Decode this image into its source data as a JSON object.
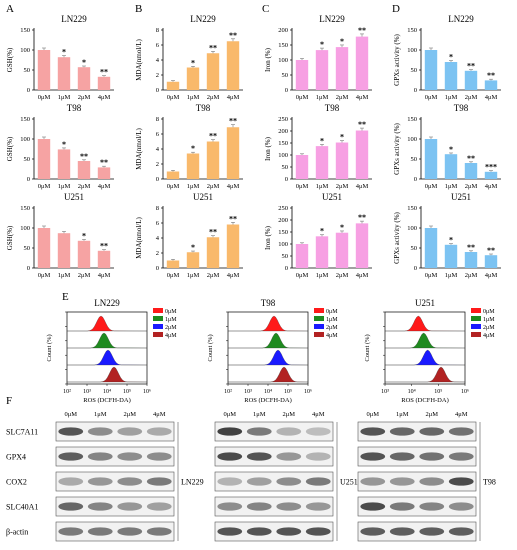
{
  "panel_labels": [
    "A",
    "B",
    "C",
    "D",
    "E",
    "F"
  ],
  "colors": {
    "gsh": "#f6a3a3",
    "mda": "#f9b96b",
    "iron": "#f7a0e3",
    "gpx": "#7cc3f2",
    "flow_0": "#ff1a1a",
    "flow_1": "#1f8a1f",
    "flow_2": "#1a1aff",
    "flow_3": "#b22222"
  },
  "chart_data": [
    {
      "type": "bar",
      "panel": "A",
      "title": "LN229",
      "ylabel": "GSH(%)",
      "categories": [
        "0μM",
        "1μM",
        "2μM",
        "4μM"
      ],
      "values": [
        100,
        82,
        57,
        33
      ],
      "ylim": [
        0,
        150
      ],
      "yticks": [
        "0",
        "50",
        "100",
        "150"
      ],
      "significance": [
        "",
        "*",
        "*",
        "**"
      ]
    },
    {
      "type": "bar",
      "panel": "A",
      "title": "T98",
      "ylabel": "GSH(%)",
      "categories": [
        "0μM",
        "1μM",
        "2μM",
        "4μM"
      ],
      "values": [
        100,
        74,
        45,
        29
      ],
      "ylim": [
        0,
        150
      ],
      "yticks": [
        "0",
        "50",
        "100",
        "150"
      ],
      "significance": [
        "",
        "*",
        "**",
        "**"
      ]
    },
    {
      "type": "bar",
      "panel": "A",
      "title": "U251",
      "ylabel": "GSH(%)",
      "categories": [
        "0μM",
        "1μM",
        "2μM",
        "4μM"
      ],
      "values": [
        100,
        87,
        68,
        43
      ],
      "ylim": [
        0,
        150
      ],
      "yticks": [
        "0",
        "50",
        "100",
        "150"
      ],
      "significance": [
        "",
        "",
        "*",
        "**"
      ]
    },
    {
      "type": "bar",
      "panel": "B",
      "title": "LN229",
      "ylabel": "MDA(nmol/L)",
      "categories": [
        "0μM",
        "1μM",
        "2μM",
        "4μM"
      ],
      "values": [
        1.1,
        3.0,
        4.9,
        6.5
      ],
      "ylim": [
        0,
        8
      ],
      "yticks": [
        "0",
        "2",
        "4",
        "6",
        "8"
      ],
      "significance": [
        "",
        "*",
        "**",
        "**"
      ]
    },
    {
      "type": "bar",
      "panel": "B",
      "title": "T98",
      "ylabel": "MDA(nmol/L)",
      "categories": [
        "0μM",
        "1μM",
        "2μM",
        "4μM"
      ],
      "values": [
        1.0,
        3.4,
        5.0,
        6.9
      ],
      "ylim": [
        0,
        8
      ],
      "yticks": [
        "0",
        "2",
        "4",
        "6",
        "8"
      ],
      "significance": [
        "",
        "*",
        "**",
        "**"
      ]
    },
    {
      "type": "bar",
      "panel": "B",
      "title": "U251",
      "ylabel": "MDA(nmol/L)",
      "categories": [
        "0μM",
        "1μM",
        "2μM",
        "4μM"
      ],
      "values": [
        1.0,
        2.1,
        4.1,
        5.8
      ],
      "ylim": [
        0,
        8
      ],
      "yticks": [
        "0",
        "2",
        "4",
        "6",
        "8"
      ],
      "significance": [
        "",
        "*",
        "**",
        "**"
      ]
    },
    {
      "type": "bar",
      "panel": "C",
      "title": "LN229",
      "ylabel": "Iron (%)",
      "categories": [
        "0μM",
        "1μM",
        "2μM",
        "4μM"
      ],
      "values": [
        100,
        133,
        143,
        178
      ],
      "ylim": [
        0,
        200
      ],
      "yticks": [
        "0",
        "50",
        "100",
        "150",
        "200"
      ],
      "significance": [
        "",
        "*",
        "*",
        "**"
      ]
    },
    {
      "type": "bar",
      "panel": "C",
      "title": "T98",
      "ylabel": "Iron (%)",
      "categories": [
        "0μM",
        "1μM",
        "2μM",
        "4μM"
      ],
      "values": [
        100,
        137,
        152,
        202
      ],
      "ylim": [
        0,
        250
      ],
      "yticks": [
        "0",
        "50",
        "100",
        "150",
        "200",
        "250"
      ],
      "significance": [
        "",
        "*",
        "*",
        "**"
      ]
    },
    {
      "type": "bar",
      "panel": "C",
      "title": "U251",
      "ylabel": "Iron (%)",
      "categories": [
        "0μM",
        "1μM",
        "2μM",
        "4μM"
      ],
      "values": [
        100,
        132,
        147,
        186
      ],
      "ylim": [
        0,
        250
      ],
      "yticks": [
        "0",
        "50",
        "100",
        "150",
        "200",
        "250"
      ],
      "significance": [
        "",
        "*",
        "*",
        "**"
      ]
    },
    {
      "type": "bar",
      "panel": "D",
      "title": "LN229",
      "ylabel": "GPXs activity (%)",
      "categories": [
        "0μM",
        "1μM",
        "2μM",
        "4μM"
      ],
      "values": [
        100,
        70,
        48,
        24
      ],
      "ylim": [
        0,
        150
      ],
      "yticks": [
        "0",
        "50",
        "100",
        "150"
      ],
      "significance": [
        "",
        "*",
        "**",
        "**"
      ]
    },
    {
      "type": "bar",
      "panel": "D",
      "title": "T98",
      "ylabel": "GPXs activity (%)",
      "categories": [
        "0μM",
        "1μM",
        "2μM",
        "4μM"
      ],
      "values": [
        100,
        62,
        40,
        18
      ],
      "ylim": [
        0,
        150
      ],
      "yticks": [
        "0",
        "50",
        "100",
        "150"
      ],
      "significance": [
        "",
        "*",
        "**",
        "***"
      ]
    },
    {
      "type": "bar",
      "panel": "D",
      "title": "U251",
      "ylabel": "GPXs activity (%)",
      "categories": [
        "0μM",
        "1μM",
        "2μM",
        "4μM"
      ],
      "values": [
        100,
        58,
        40,
        32
      ],
      "ylim": [
        0,
        150
      ],
      "yticks": [
        "0",
        "50",
        "100",
        "150"
      ],
      "significance": [
        "",
        "*",
        "**",
        "**"
      ]
    },
    {
      "type": "area",
      "panel": "E",
      "title": "LN229",
      "xlabel": "ROS (DCFH-DA)",
      "ylabel": "Count (%)",
      "xscale": "log",
      "xticks": [
        "10²",
        "10³",
        "10⁴",
        "10⁵",
        "10⁶"
      ],
      "yticks": [
        "0",
        "20",
        "40",
        "60",
        "80",
        "100"
      ],
      "legend": [
        "0μM",
        "1μM",
        "2μM",
        "4μM"
      ],
      "peak_positions": [
        3.7,
        3.85,
        4.05,
        4.35
      ]
    },
    {
      "type": "area",
      "panel": "E",
      "title": "T98",
      "xlabel": "ROS (DCFH-DA)",
      "ylabel": "Count (%)",
      "xscale": "log",
      "xticks": [
        "10²",
        "10³",
        "10⁴",
        "10⁵",
        "10⁶"
      ],
      "yticks": [
        "0",
        "20",
        "40",
        "60",
        "80",
        "100"
      ],
      "legend": [
        "0μM",
        "1μM",
        "2μM",
        "4μM"
      ],
      "peak_positions": [
        4.3,
        4.4,
        4.5,
        4.8
      ]
    },
    {
      "type": "area",
      "panel": "E",
      "title": "U251",
      "xlabel": "ROS (DCFH-DA)",
      "ylabel": "Count (%)",
      "xscale": "log",
      "xticks": [
        "10³",
        "10⁴",
        "10⁵",
        "10⁶"
      ],
      "yticks": [
        "0",
        "20",
        "40",
        "60",
        "80",
        "100"
      ],
      "legend": [
        "0μM",
        "1μM",
        "2μM",
        "4μM"
      ],
      "peak_positions": [
        4.25,
        4.45,
        4.6,
        5.1
      ]
    }
  ],
  "western": {
    "proteins": [
      "SLC7A11",
      "GPX4",
      "COX2",
      "SLC40A1",
      "β-actin"
    ],
    "lane_labels": [
      "0μM",
      "1μM",
      "2μM",
      "4μM"
    ],
    "blots": [
      {
        "cell_line": "LN229",
        "intensity": [
          [
            0.8,
            0.5,
            0.4,
            0.35
          ],
          [
            0.75,
            0.55,
            0.5,
            0.5
          ],
          [
            0.35,
            0.45,
            0.5,
            0.6
          ],
          [
            0.7,
            0.55,
            0.45,
            0.4
          ],
          [
            0.6,
            0.6,
            0.6,
            0.6
          ]
        ]
      },
      {
        "cell_line": "U251",
        "intensity": [
          [
            0.9,
            0.6,
            0.3,
            0.25
          ],
          [
            0.85,
            0.8,
            0.45,
            0.3
          ],
          [
            0.3,
            0.4,
            0.5,
            0.6
          ],
          [
            0.5,
            0.55,
            0.5,
            0.45
          ],
          [
            0.8,
            0.8,
            0.8,
            0.8
          ]
        ]
      },
      {
        "cell_line": "T98",
        "intensity": [
          [
            0.8,
            0.7,
            0.7,
            0.65
          ],
          [
            0.8,
            0.7,
            0.65,
            0.6
          ],
          [
            0.45,
            0.45,
            0.5,
            0.85
          ],
          [
            0.85,
            0.6,
            0.55,
            0.5
          ],
          [
            0.75,
            0.75,
            0.75,
            0.75
          ]
        ]
      }
    ]
  }
}
